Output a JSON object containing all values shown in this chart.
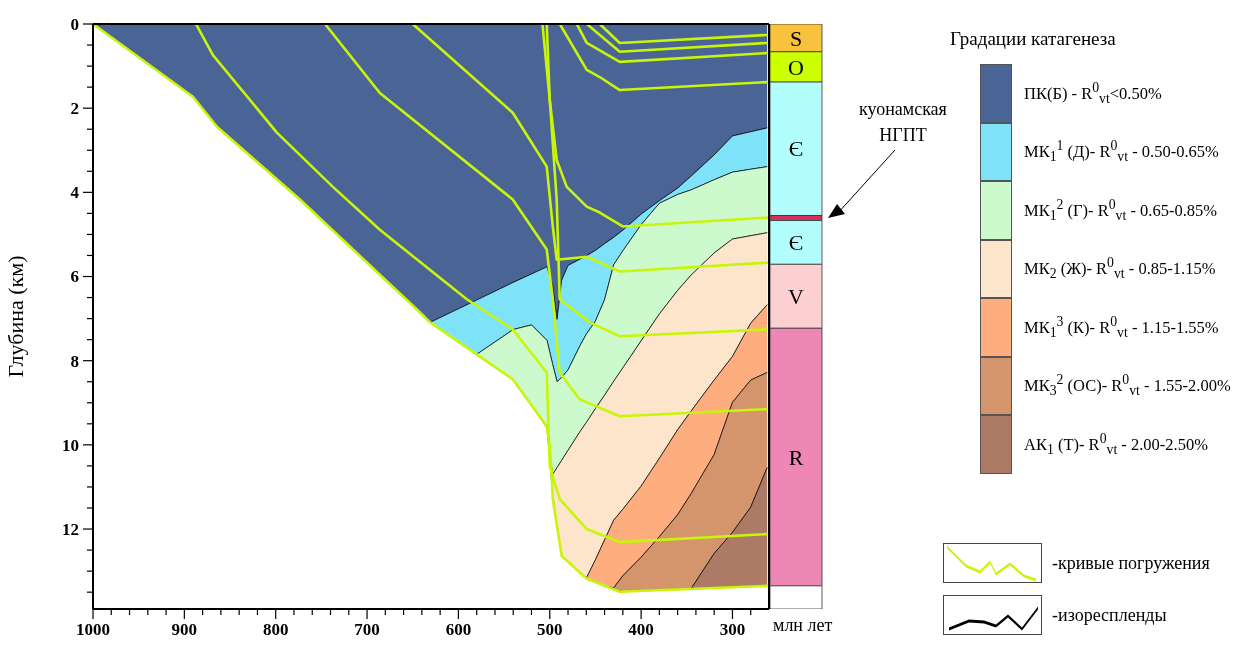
{
  "chart_data": [
    {
      "type": "area",
      "stacked": true,
      "xlabel": "млн лет",
      "ylabel": "Глубина (км)",
      "legend_title": "Градации катагенеза",
      "legend": "right",
      "xlim": [
        1000,
        260
      ],
      "ylim": [
        13.9,
        0
      ],
      "xticks": [
        1000,
        {
          "value": 980,
          "label": null
        },
        {
          "value": 960,
          "label": null
        },
        {
          "value": 940,
          "label": null
        },
        {
          "value": 920,
          "label": null
        },
        900,
        {
          "value": 880,
          "label": null
        },
        {
          "value": 860,
          "label": null
        },
        {
          "value": 840,
          "label": null
        },
        {
          "value": 820,
          "label": null
        },
        800,
        {
          "value": 780,
          "label": null
        },
        {
          "value": 760,
          "label": null
        },
        {
          "value": 740,
          "label": null
        },
        {
          "value": 720,
          "label": null
        },
        700,
        {
          "value": 680,
          "label": null
        },
        {
          "value": 660,
          "label": null
        },
        {
          "value": 640,
          "label": null
        },
        {
          "value": 620,
          "label": null
        },
        600,
        {
          "value": 580,
          "label": null
        },
        {
          "value": 560,
          "label": null
        },
        {
          "value": 540,
          "label": null
        },
        {
          "value": 520,
          "label": null
        },
        500,
        {
          "value": 480,
          "label": null
        },
        {
          "value": 460,
          "label": null
        },
        {
          "value": 440,
          "label": null
        },
        {
          "value": 420,
          "label": null
        },
        400,
        {
          "value": 380,
          "label": null
        },
        {
          "value": 360,
          "label": null
        },
        {
          "value": 340,
          "label": null
        },
        {
          "value": 320,
          "label": null
        },
        300,
        {
          "value": 280,
          "label": null
        }
      ],
      "yticks": [
        0,
        {
          "value": 0.5,
          "label": null
        },
        {
          "value": 1,
          "label": null
        },
        {
          "value": 1.5,
          "label": null
        },
        2,
        {
          "value": 2.5,
          "label": null
        },
        {
          "value": 3,
          "label": null
        },
        {
          "value": 3.5,
          "label": null
        },
        4,
        {
          "value": 4.5,
          "label": null
        },
        {
          "value": 5,
          "label": null
        },
        {
          "value": 5.5,
          "label": null
        },
        6,
        {
          "value": 6.5,
          "label": null
        },
        {
          "value": 7,
          "label": null
        },
        {
          "value": 7.5,
          "label": null
        },
        8,
        {
          "value": 8.5,
          "label": null
        },
        {
          "value": 9,
          "label": null
        },
        {
          "value": 9.5,
          "label": null
        },
        10,
        {
          "value": 10.5,
          "label": null
        },
        {
          "value": 11,
          "label": null
        },
        {
          "value": 11.5,
          "label": null
        },
        12,
        {
          "value": 12.5,
          "label": null
        },
        {
          "value": 13,
          "label": null
        },
        {
          "value": 13.5,
          "label": null
        }
      ],
      "x": [
        1000,
        890,
        865,
        775,
        640,
        630,
        580,
        540,
        520,
        503,
        497,
        492,
        487,
        480,
        467,
        460,
        450,
        440,
        430,
        420,
        400,
        380,
        360,
        345,
        320,
        300,
        280,
        262
      ],
      "series": [
        {
          "name": "ПК(Б) - R$^{0}$$_{vt}$<0.50%",
          "color": "#4a6496",
          "values": [
            0,
            1.74,
            2.42,
            4.14,
            6.9,
            7.08,
            6.56,
            6.14,
            5.94,
            5.77,
            6.22,
            7.02,
            6.09,
            5.74,
            5.59,
            5.51,
            5.38,
            5.22,
            5.07,
            4.9,
            4.52,
            4.2,
            3.9,
            3.61,
            3.11,
            2.66,
            2.56,
            2.47
          ]
        },
        {
          "name": "МК$_{1}$$^{1}$ (Д)- R$^{0}$$_{vt}$ - 0.50-0.65%",
          "color": "#7ee2f8",
          "values": [
            null,
            null,
            null,
            null,
            0,
            0.02,
            1.29,
            1.12,
            1.21,
            1.75,
            1.85,
            1.48,
            2.31,
            2.48,
            2.06,
            1.86,
            1.68,
            1.33,
            0.65,
            0.49,
            0.25,
            0.06,
            0.15,
            0.33,
            0.59,
            0.86,
            0.89,
            0.92
          ]
        },
        {
          "name": "МК$_{1}$$^{2}$ (Г)- R$^{0}$$_{vt}$ - 0.65-0.85%",
          "color": "#ccfacc",
          "values": [
            null,
            null,
            null,
            null,
            null,
            null,
            0,
            1.19,
            1.92,
            2.08,
            2.64,
            2.04,
            1.97,
            1.91,
            2.04,
            2.1,
            2.08,
            2.27,
            2.77,
            2.78,
            2.76,
            2.63,
            2.28,
            2.02,
            1.74,
            1.59,
            1.58,
            1.57
          ]
        },
        {
          "name": "МК$_{2}$ (Ж)- R$^{0}$$_{vt}$ - 0.85-1.15%",
          "color": "#fde5cb",
          "values": [
            null,
            null,
            null,
            null,
            null,
            null,
            null,
            null,
            null,
            0,
            0.43,
            1.4,
            2.26,
            2.65,
            3.34,
            3.7,
            3.59,
            3.44,
            3.3,
            3.36,
            3.45,
            3.43,
            3.31,
            3.23,
            3.02,
            2.79,
            2.08,
            1.71
          ]
        },
        {
          "name": "МК$_{1}$$^{3}$ (К)- R$^{0}$$_{vt}$ - 1.15-1.55%",
          "color": "#fdad7e",
          "values": [
            null,
            null,
            null,
            null,
            null,
            null,
            null,
            null,
            null,
            null,
            null,
            null,
            null,
            null,
            null,
            0,
            0.53,
            1.09,
            1.61,
            1.58,
            1.69,
            1.86,
            2.02,
            1.96,
            1.77,
            1.09,
            1.35,
            1.61
          ]
        },
        {
          "name": "МК$_{3}$$^{2}$ (ОС)- R$^{0}$$_{vt}$ - 1.55-2.00%",
          "color": "#d4946c",
          "values": [
            null,
            null,
            null,
            null,
            null,
            null,
            null,
            null,
            null,
            null,
            null,
            null,
            null,
            null,
            null,
            null,
            null,
            0,
            0.03,
            0.38,
            0.8,
            1.27,
            1.78,
            2.26,
            2.35,
            3.09,
            3.02,
            2.26
          ]
        },
        {
          "name": "АК$_{1}$ (Т)- R$^{0}$$_{vt}$ - 2.00-2.50%",
          "color": "#ad7a66",
          "values": [
            null,
            null,
            null,
            null,
            null,
            null,
            null,
            null,
            null,
            null,
            null,
            null,
            null,
            null,
            null,
            null,
            null,
            null,
            null,
            null,
            null,
            null,
            0,
            0.02,
            0.82,
            1.3,
            1.89,
            2.81
          ]
        },
        {
          "type": "line",
          "color": "#c8f50a",
          "x": [
            1000,
            890.6,
            864.3,
            773.5,
            642.2,
            631,
            580,
            540.5,
            503.3,
            500,
            497.8,
            496.7,
            486.9,
            459.5,
            423.4,
            261.5
          ],
          "values": [
            0,
            1.73,
            2.44,
            4.17,
            6.85,
            7.09,
            7.85,
            8.44,
            9.56,
            10.03,
            10.74,
            11.29,
            12.64,
            13.18,
            13.49,
            13.35
          ]
        },
        {
          "type": "line",
          "color": "#c8f50a",
          "x": [
            887.3,
            868.7,
            798.7,
            737.4,
            686,
            590.8,
            540.5,
            503.3,
            500,
            489.1,
            459.5,
            423.4,
            262.6
          ],
          "values": [
            0,
            0.74,
            2.58,
            3.87,
            4.89,
            6.54,
            7.26,
            8.28,
            10.51,
            11.29,
            12,
            12.31,
            12.12
          ]
        },
        {
          "type": "line",
          "color": "#c8f50a",
          "x": [
            746,
            686,
            540.5,
            503.3,
            496.7,
            489.1,
            467.2,
            423.4,
            262.6
          ],
          "values": [
            0,
            1.64,
            4.17,
            5.36,
            6.54,
            8.28,
            8.92,
            9.32,
            9.15
          ]
        },
        {
          "type": "line",
          "color": "#c8f50a",
          "x": [
            508,
            500,
            492.4,
            489.1,
            456.2,
            423.4,
            262.6
          ],
          "values": [
            0,
            1.8,
            4.17,
            6.54,
            7.09,
            7.42,
            7.26
          ]
        },
        {
          "type": "line",
          "color": "#c8f50a",
          "x": [
            650,
            540.5,
            503.3,
            496.7,
            492.4,
            459.5,
            423.4,
            261.5
          ],
          "values": [
            0,
            2.11,
            3.39,
            4.81,
            5.6,
            5.53,
            5.88,
            5.67
          ]
        },
        {
          "type": "line",
          "color": "#c8f50a",
          "x": [
            503.3,
            500,
            492.4,
            481.4,
            459.5,
            445.3,
            420.1,
            261.5
          ],
          "values": [
            0,
            1.8,
            3.23,
            3.87,
            4.34,
            4.48,
            4.81,
            4.6
          ]
        },
        {
          "type": "line",
          "color": "#c8f50a",
          "x": [
            489,
            459.5,
            445.3,
            423.4,
            261.5
          ],
          "values": [
            0,
            1.09,
            1.26,
            1.57,
            1.38
          ]
        },
        {
          "type": "line",
          "color": "#c8f50a",
          "x": [
            470.5,
            459.5,
            423.4,
            261.5
          ],
          "values": [
            0,
            0.45,
            0.9,
            0.69
          ]
        },
        {
          "type": "line",
          "color": "#c8f50a",
          "x": [
            459.5,
            423.4,
            261.5
          ],
          "values": [
            0,
            0.66,
            0.45
          ]
        },
        {
          "type": "line",
          "color": "#c8f50a",
          "x": [
            445.3,
            423.4,
            261.5
          ],
          "values": [
            0,
            0.45,
            0.26
          ]
        }
      ],
      "annotations": [
        "-кривые погружения",
        "-изореспленды"
      ]
    },
    {
      "type": "bar",
      "stacked": true,
      "categories": [
        null
      ],
      "ylim": [
        13.9,
        0
      ],
      "tick_labels": false,
      "series": [
        {
          "name": "S",
          "color": "#f9c23c",
          "values": [
            0.66
          ]
        },
        {
          "name": "O",
          "color": "#ccff00",
          "values": [
            0.72
          ]
        },
        {
          "name": "Є",
          "color": "#b3fdfd",
          "values": [
            3.17
          ]
        },
        {
          "color": "#d0315a",
          "values": [
            0.12
          ]
        },
        {
          "name": "Є",
          "color": "#b3fdfd",
          "values": [
            1.04
          ]
        },
        {
          "name": "V",
          "color": "#fccfd0",
          "values": [
            1.52
          ]
        },
        {
          "name": "R",
          "color": "#ee87b6",
          "values": [
            6.12
          ]
        },
        {
          "color": "#ffffff",
          "values": [
            0.55
          ]
        }
      ],
      "annotations": [
        "куонамская НГПТ"
      ]
    }
  ]
}
